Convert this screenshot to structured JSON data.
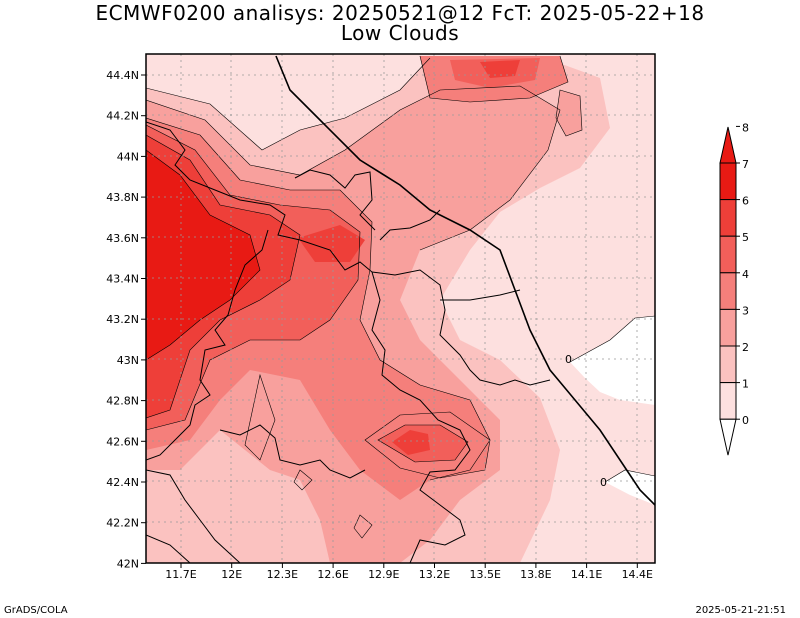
{
  "title": "ECMWF0200 analisys: 20250521@12 FcT: 2025-05-22+18",
  "subtitle": "Low Clouds",
  "footer_left": "GrADS/COLA",
  "footer_right": "2025-05-21-21:51",
  "colorbar": {
    "levels": [
      "0",
      "1",
      "2",
      "3",
      "4",
      "5",
      "6",
      "7",
      "8"
    ],
    "colors": [
      "#ffffff",
      "#fde0df",
      "#fbc2c0",
      "#f8a09d",
      "#f57f7b",
      "#f25f5a",
      "#ee3f39",
      "#e81a14"
    ]
  },
  "axes": {
    "x_ticks": [
      "11.7E",
      "12E",
      "12.3E",
      "12.6E",
      "12.9E",
      "13.2E",
      "13.5E",
      "13.8E",
      "14.1E",
      "14.4E"
    ],
    "y_ticks": [
      "44.4N",
      "44.2N",
      "44N",
      "43.8N",
      "43.6N",
      "43.4N",
      "43.2N",
      "43N",
      "42.8N",
      "42.6N",
      "42.4N",
      "42.2N",
      "42N"
    ]
  },
  "contour_labels": [
    "0",
    "0"
  ],
  "style": {
    "land_base": "#fde0df",
    "border_color": "#000000",
    "grid_color": "#999999"
  }
}
